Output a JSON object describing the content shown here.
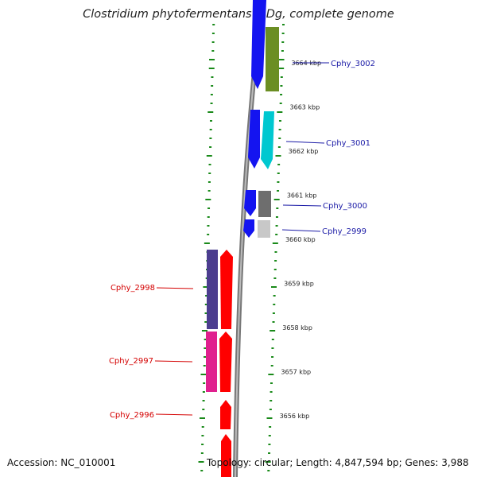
{
  "title": "Clostridium phytofermentans ISDg, complete genome",
  "accession": "Accession: NC_010001",
  "summary": "Topology: circular; Length: 4,847,594 bp; Genes: 3,988",
  "scale": {
    "unit": "kbp",
    "ticks": [
      {
        "kbp": 3664,
        "label": "3664 kbp"
      },
      {
        "kbp": 3663,
        "label": "3663 kbp"
      },
      {
        "kbp": 3662,
        "label": "3662 kbp"
      },
      {
        "kbp": 3661,
        "label": "3661 kbp"
      },
      {
        "kbp": 3660,
        "label": "3660 kbp"
      },
      {
        "kbp": 3659,
        "label": "3659 kbp"
      },
      {
        "kbp": 3658,
        "label": "3658 kbp"
      },
      {
        "kbp": 3657,
        "label": "3657 kbp"
      },
      {
        "kbp": 3656,
        "label": "3656 kbp"
      }
    ]
  },
  "colors": {
    "forward_label": "#1a1aa6",
    "reverse_label": "#d40000",
    "cds_forward": "#0000ff",
    "cds_reverse": "#ff0000",
    "backbone": "#888888",
    "tick_green": "#1a8a1a"
  },
  "genes": [
    {
      "label": "Cphy_3002",
      "strand": "forward"
    },
    {
      "label": "Cphy_3001",
      "strand": "forward"
    },
    {
      "label": "Cphy_3000",
      "strand": "forward"
    },
    {
      "label": "Cphy_2999",
      "strand": "forward"
    },
    {
      "label": "Cphy_2998",
      "strand": "reverse"
    },
    {
      "label": "Cphy_2997",
      "strand": "reverse"
    },
    {
      "label": "Cphy_2996",
      "strand": "reverse"
    }
  ]
}
